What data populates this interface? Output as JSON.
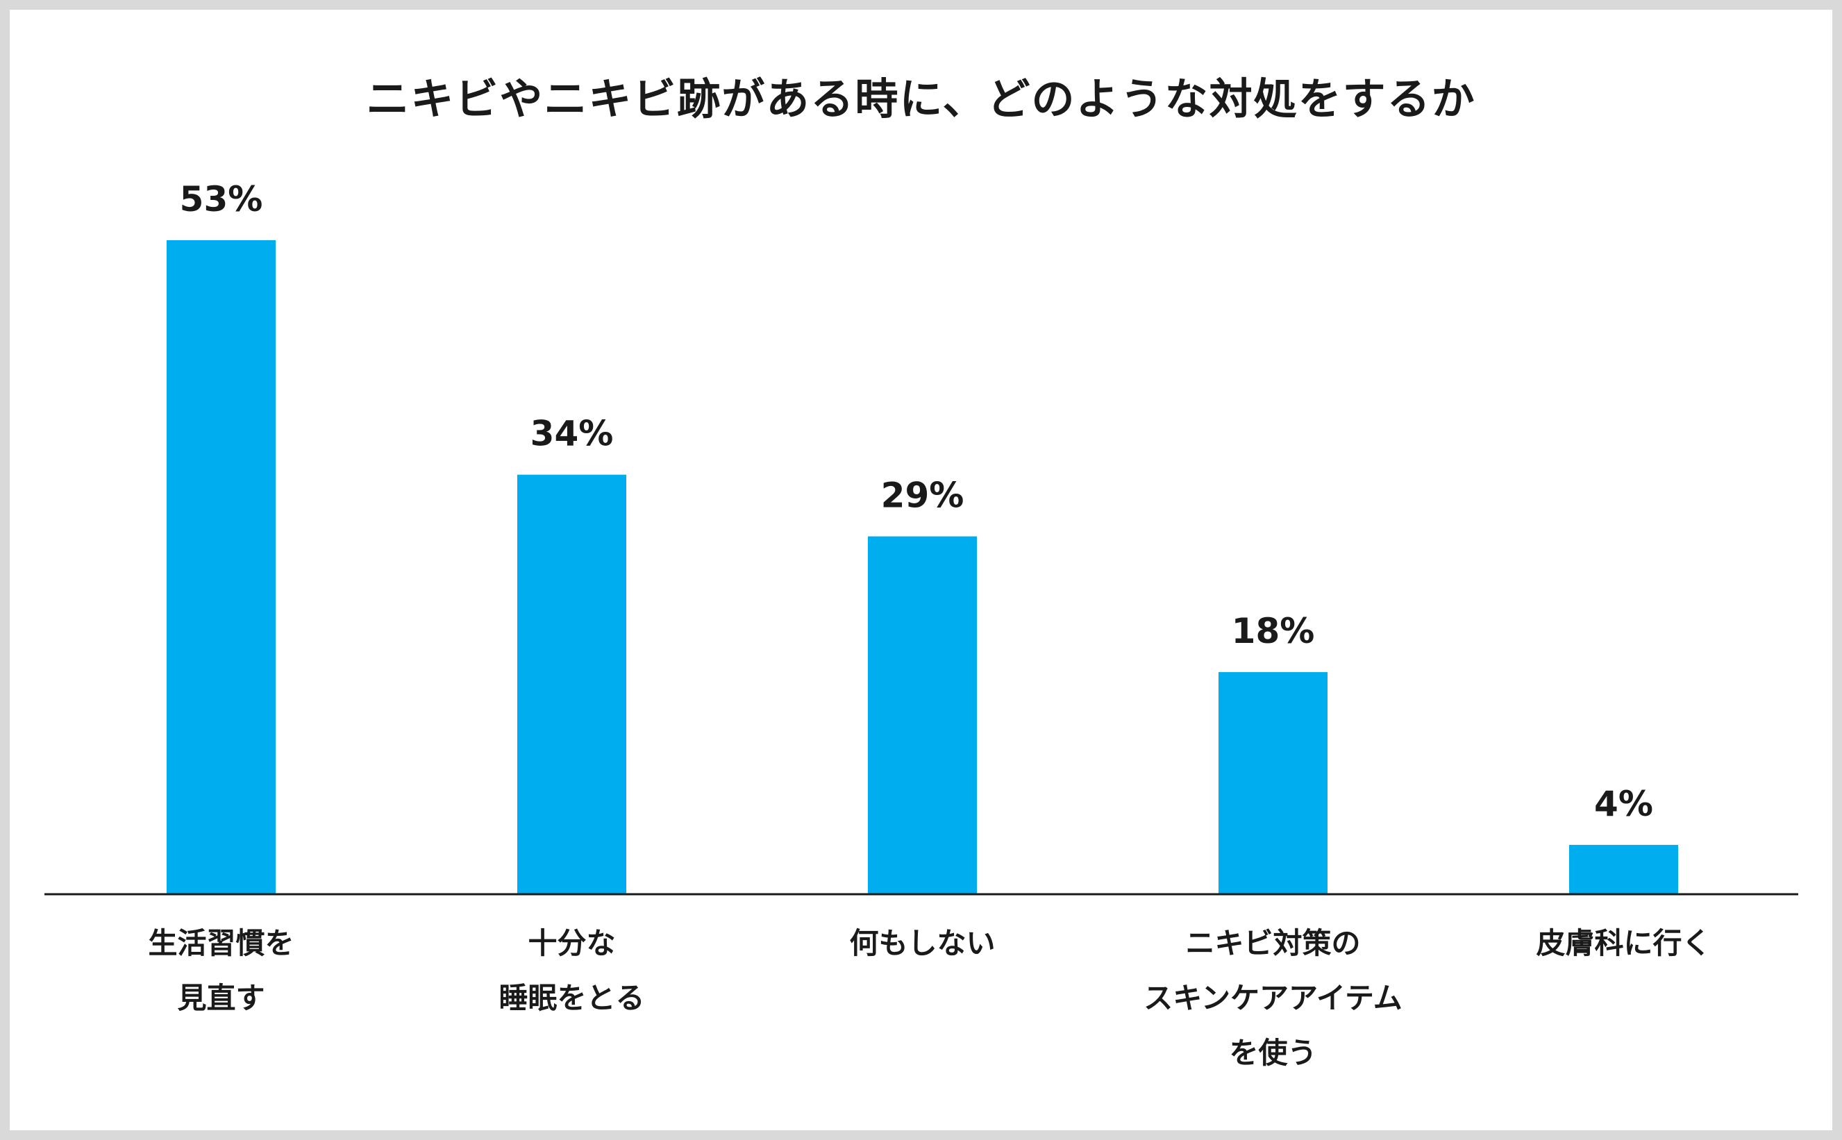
{
  "chart_data": {
    "type": "bar",
    "title": "ニキビやニキビ跡がある時に、どのような対処をするか",
    "categories": [
      [
        "生活習慣を",
        "見直す"
      ],
      [
        "十分な",
        "睡眠をとる"
      ],
      [
        "何もしない"
      ],
      [
        "ニキビ対策の",
        "スキンケアアイテム",
        "を使う"
      ],
      [
        "皮膚科に行く"
      ]
    ],
    "values": [
      53,
      34,
      29,
      18,
      4
    ],
    "value_labels": [
      "53%",
      "34%",
      "29%",
      "18%",
      "4%"
    ],
    "ylim": [
      0,
      53
    ],
    "bar_color": "#00aeef",
    "axis_color": "#1a1a1a",
    "grid": false,
    "legend": "none"
  }
}
